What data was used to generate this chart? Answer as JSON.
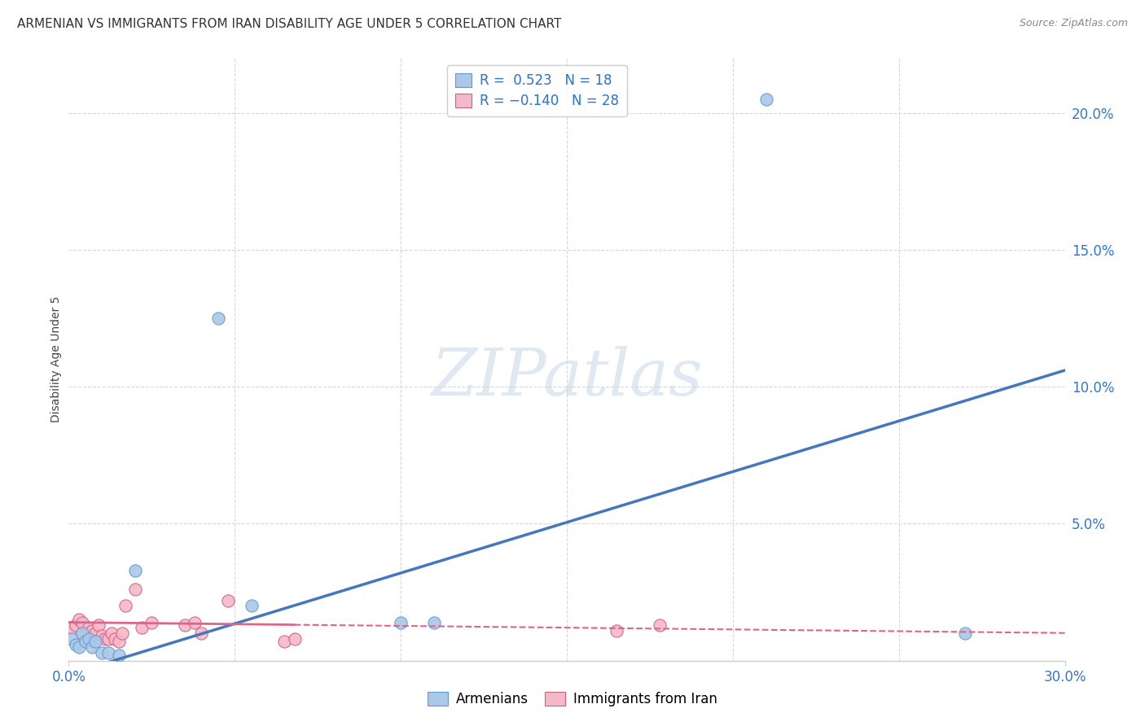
{
  "title": "ARMENIAN VS IMMIGRANTS FROM IRAN DISABILITY AGE UNDER 5 CORRELATION CHART",
  "source": "Source: ZipAtlas.com",
  "ylabel": "Disability Age Under 5",
  "xlim": [
    0,
    0.3
  ],
  "ylim": [
    0,
    0.22
  ],
  "background_color": "#ffffff",
  "grid_color": "#d8d8d8",
  "armenians": {
    "color": "#aac8e8",
    "edge_color": "#6699cc",
    "R": 0.523,
    "N": 18,
    "label": "Armenians",
    "points_x": [
      0.001,
      0.002,
      0.003,
      0.004,
      0.005,
      0.006,
      0.007,
      0.008,
      0.01,
      0.012,
      0.015,
      0.02,
      0.045,
      0.055,
      0.1,
      0.11,
      0.21,
      0.27
    ],
    "points_y": [
      0.008,
      0.006,
      0.005,
      0.01,
      0.007,
      0.008,
      0.005,
      0.007,
      0.003,
      0.003,
      0.002,
      0.033,
      0.125,
      0.02,
      0.014,
      0.014,
      0.205,
      0.01
    ]
  },
  "iran": {
    "color": "#f4b8c8",
    "edge_color": "#d06080",
    "R": -0.14,
    "N": 28,
    "label": "Immigrants from Iran",
    "points_x": [
      0.001,
      0.002,
      0.003,
      0.004,
      0.005,
      0.006,
      0.007,
      0.008,
      0.009,
      0.01,
      0.011,
      0.012,
      0.013,
      0.014,
      0.015,
      0.016,
      0.017,
      0.02,
      0.022,
      0.025,
      0.035,
      0.038,
      0.04,
      0.048,
      0.065,
      0.068,
      0.165,
      0.178
    ],
    "points_y": [
      0.012,
      0.013,
      0.015,
      0.014,
      0.01,
      0.012,
      0.011,
      0.01,
      0.013,
      0.009,
      0.008,
      0.008,
      0.01,
      0.008,
      0.007,
      0.01,
      0.02,
      0.026,
      0.012,
      0.014,
      0.013,
      0.014,
      0.01,
      0.022,
      0.007,
      0.008,
      0.011,
      0.013
    ]
  },
  "title_fontsize": 11,
  "label_fontsize": 10,
  "tick_fontsize": 12,
  "source_fontsize": 9,
  "legend_fontsize": 12
}
